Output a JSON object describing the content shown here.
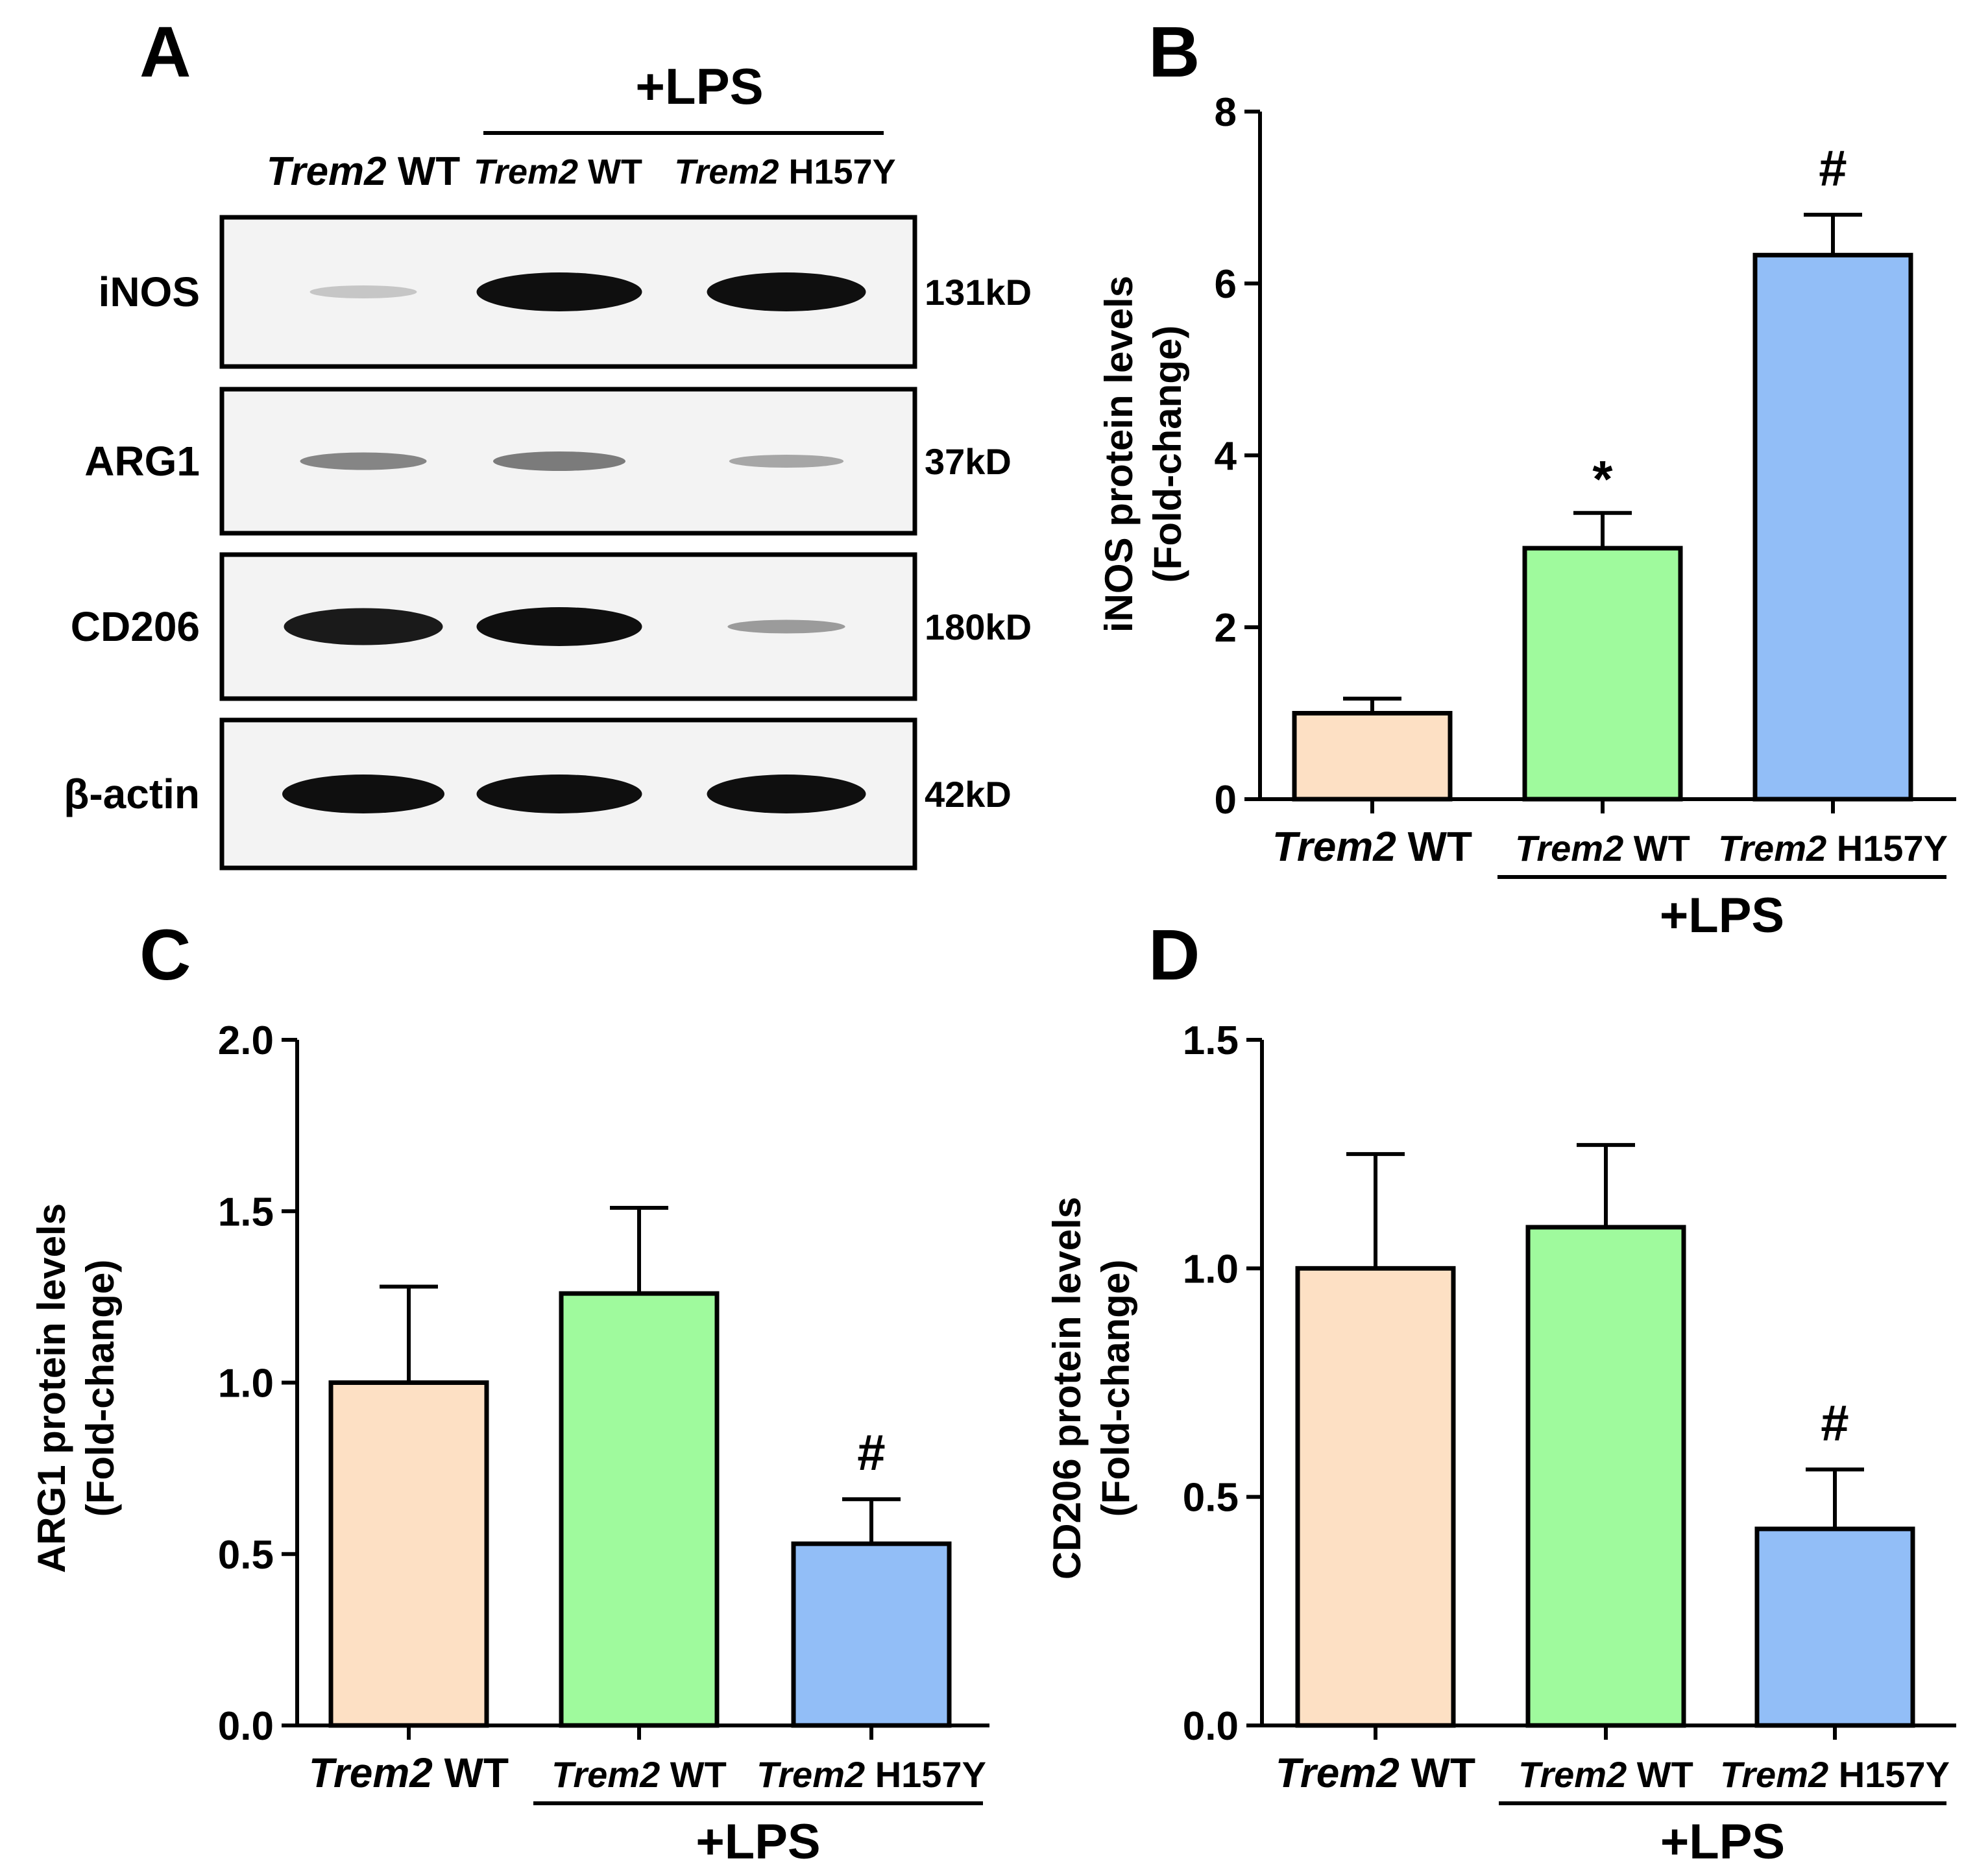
{
  "panel_a": {
    "letter": "A",
    "treatment_label": "+LPS",
    "lane_headers": [
      {
        "gene": "Trem2",
        "genotype": "WT"
      },
      {
        "gene": "Trem2",
        "genotype": "WT"
      },
      {
        "gene": "Trem2",
        "genotype": "H157Y"
      }
    ],
    "blots": [
      {
        "protein": "iNOS",
        "size": "131kD",
        "band_intensity": [
          0.15,
          1.0,
          1.0
        ]
      },
      {
        "protein": "ARG1",
        "size": "37kD",
        "band_intensity": [
          0.45,
          0.5,
          0.3
        ]
      },
      {
        "protein": "CD206",
        "size": "180kD",
        "band_intensity": [
          0.95,
          1.0,
          0.35
        ]
      },
      {
        "protein": "β-actin",
        "size": "42kD",
        "band_intensity": [
          1.0,
          1.0,
          1.0
        ]
      }
    ]
  },
  "colors": {
    "wt": "#fde0c4",
    "wt_lps": "#9ffa9d",
    "h157y_lps": "#92bef7",
    "axis": "#000000"
  },
  "chart_data": [
    {
      "panel": "B",
      "type": "bar",
      "categories": [
        {
          "gene": "Trem2",
          "genotype": "WT"
        },
        {
          "gene": "Trem2",
          "genotype": "WT"
        },
        {
          "gene": "Trem2",
          "genotype": "H157Y"
        }
      ],
      "values": [
        1.0,
        2.92,
        6.33
      ],
      "errors": [
        0.17,
        0.41,
        0.47
      ],
      "annotations": [
        "",
        "*",
        "#"
      ],
      "ylabel": "iNOS protein levels",
      "ylabel2": "(Fold-change)",
      "ylim": [
        0,
        8
      ],
      "yticks": [
        "0",
        "2",
        "4",
        "6",
        "8"
      ],
      "group_label": "+LPS"
    },
    {
      "panel": "C",
      "type": "bar",
      "categories": [
        {
          "gene": "Trem2",
          "genotype": "WT"
        },
        {
          "gene": "Trem2",
          "genotype": "WT"
        },
        {
          "gene": "Trem2",
          "genotype": "H157Y"
        }
      ],
      "values": [
        1.0,
        1.26,
        0.53
      ],
      "errors": [
        0.28,
        0.25,
        0.13
      ],
      "annotations": [
        "",
        "",
        "#"
      ],
      "ylabel": "ARG1 protein levels",
      "ylabel2": "(Fold-change)",
      "ylim": [
        0,
        2.0
      ],
      "yticks": [
        "0.0",
        "0.5",
        "1.0",
        "1.5",
        "2.0"
      ],
      "group_label": "+LPS"
    },
    {
      "panel": "D",
      "type": "bar",
      "categories": [
        {
          "gene": "Trem2",
          "genotype": "WT"
        },
        {
          "gene": "Trem2",
          "genotype": "WT"
        },
        {
          "gene": "Trem2",
          "genotype": "H157Y"
        }
      ],
      "values": [
        1.0,
        1.09,
        0.43
      ],
      "errors": [
        0.25,
        0.18,
        0.13
      ],
      "annotations": [
        "",
        "",
        "#"
      ],
      "ylabel": "CD206 protein levels",
      "ylabel2": "(Fold-change)",
      "ylim": [
        0,
        1.5
      ],
      "yticks": [
        "0.0",
        "0.5",
        "1.0",
        "1.5"
      ],
      "group_label": "+LPS"
    }
  ]
}
